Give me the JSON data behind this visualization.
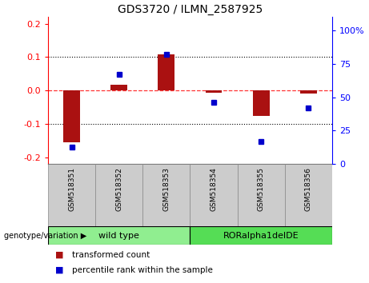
{
  "title": "GDS3720 / ILMN_2587925",
  "samples": [
    "GSM518351",
    "GSM518352",
    "GSM518353",
    "GSM518354",
    "GSM518355",
    "GSM518356"
  ],
  "bar_values": [
    -0.155,
    0.018,
    0.108,
    -0.007,
    -0.075,
    -0.01
  ],
  "scatter_values": [
    13,
    67,
    82,
    46,
    17,
    42
  ],
  "groups": [
    {
      "label": "wild type",
      "start": 0,
      "end": 3,
      "color": "#90EE90"
    },
    {
      "label": "RORalpha1delDE",
      "start": 3,
      "end": 6,
      "color": "#55DD55"
    }
  ],
  "ylim_left": [
    -0.22,
    0.22
  ],
  "ylim_right": [
    0,
    110
  ],
  "yticks_left": [
    -0.2,
    -0.1,
    0.0,
    0.1,
    0.2
  ],
  "yticks_right": [
    0,
    25,
    50,
    75,
    100
  ],
  "bar_color": "#AA1111",
  "scatter_color": "#0000CC",
  "zero_line_color": "#FF3333",
  "grid_color": "black",
  "plot_bg_color": "white",
  "sample_box_color": "#CCCCCC",
  "legend_items": [
    "transformed count",
    "percentile rank within the sample"
  ],
  "genotype_label": "genotype/variation"
}
